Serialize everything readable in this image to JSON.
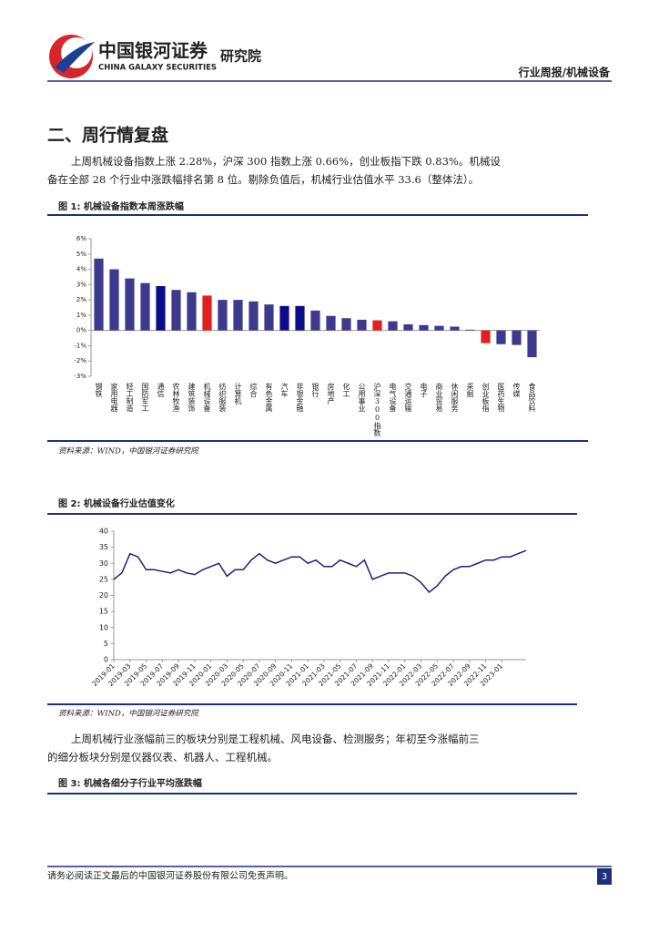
{
  "header": {
    "logo_cn": "中国银河证券",
    "logo_en": "CHINA GALAXY SECURITIES",
    "institute": "研究院",
    "report_type": "行业周报/机械设备"
  },
  "section_title": "二、周行情复盘",
  "paragraph1": [
    "上周机械设备指数上涨 2.28%，沪深 300 指数上涨 0.66%，创业板指下跌 0.83%。机械设",
    "备在全部 28 个行业中涨跌幅排名第 8 位。剔除负值后，机械行业估值水平 33.6（整体法）。"
  ],
  "figure1": {
    "caption": "图 1: 机械设备指数本周涨跌幅",
    "source": "资料来源：WIND，中国银河证券研究院"
  },
  "figure2": {
    "caption": "图 2: 机械设备行业估值变化",
    "source": "资料来源：WIND，中国银河证券研究院"
  },
  "paragraph2": [
    "上周机械行业涨幅前三的板块分别是工程机械、风电设备、检测服务；年初至今涨幅前三",
    "的细分板块分别是仪器仪表、机器人、工程机械。"
  ],
  "figure3": {
    "caption": "图 3: 机械各细分子行业平均涨跌幅"
  },
  "footer": {
    "disclaimer": "请务必阅读正文最后的中国银河证券股份有限公司免责声明。",
    "page": "3"
  },
  "chart_data": [
    {
      "type": "bar",
      "categories": [
        "钢铁",
        "家用电器",
        "轻工制造",
        "国防军工",
        "通信",
        "农林牧渔",
        "建筑装饰",
        "机械设备",
        "纺织服装",
        "计算机",
        "综合",
        "有色金属",
        "汽车",
        "非银金融",
        "银行",
        "房地产",
        "化工",
        "公用事业",
        "沪深300指数",
        "电气设备",
        "交通运输",
        "电子",
        "商业贸易",
        "休闲服务",
        "采掘",
        "创业板指",
        "医药生物",
        "传媒",
        "食品饮料"
      ],
      "values": [
        4.7,
        4.0,
        3.4,
        3.1,
        2.9,
        2.65,
        2.5,
        2.28,
        2.0,
        2.0,
        1.9,
        1.7,
        1.6,
        1.6,
        1.3,
        0.95,
        0.8,
        0.7,
        0.66,
        0.6,
        0.4,
        0.35,
        0.3,
        0.25,
        0.05,
        -0.83,
        -0.9,
        -0.95,
        -1.75
      ],
      "colors": [
        "#3d3a8e",
        "#3d3a8e",
        "#3d3a8e",
        "#3d3a8e",
        "#0c0c8a",
        "#3d3a8e",
        "#3d3a8e",
        "#e0201f",
        "#3d3a8e",
        "#3d3a8e",
        "#3d3a8e",
        "#3d3a8e",
        "#0c0c8a",
        "#0c0c8a",
        "#3d3a8e",
        "#3d3a8e",
        "#3d3a8e",
        "#3d3a8e",
        "#e0201f",
        "#3d3a8e",
        "#3d3a8e",
        "#3d3a8e",
        "#3d3a8e",
        "#3d3a8e",
        "#3d3a8e",
        "#e0201f",
        "#3d3a8e",
        "#3d3a8e",
        "#3d3a8e"
      ],
      "ylim": [
        -3,
        6
      ],
      "yticks": [
        {
          "value": -3,
          "label": "-3%"
        },
        {
          "value": -2,
          "label": "-2%"
        },
        {
          "value": -1,
          "label": "-1%"
        },
        {
          "value": 0,
          "label": "0%"
        },
        {
          "value": 1,
          "label": "1%"
        },
        {
          "value": 2,
          "label": "2%"
        },
        {
          "value": 3,
          "label": "3%"
        },
        {
          "value": 4,
          "label": "4%"
        },
        {
          "value": 5,
          "label": "5%"
        },
        {
          "value": 6,
          "label": "6%"
        }
      ]
    },
    {
      "type": "line",
      "x": [
        "2019-01",
        "2019-02",
        "2019-03",
        "2019-04",
        "2019-05",
        "2019-06",
        "2019-07",
        "2019-08",
        "2019-09",
        "2019-10",
        "2019-11",
        "2019-12",
        "2020-01",
        "2020-02",
        "2020-03",
        "2020-04",
        "2020-05",
        "2020-06",
        "2020-07",
        "2020-08",
        "2020-09",
        "2020-10",
        "2020-11",
        "2020-12",
        "2021-01",
        "2021-02",
        "2021-03",
        "2021-04",
        "2021-05",
        "2021-06",
        "2021-07",
        "2021-08",
        "2021-09",
        "2021-10",
        "2021-11",
        "2021-12",
        "2022-01",
        "2022-02",
        "2022-03",
        "2022-04",
        "2022-05",
        "2022-06",
        "2022-07",
        "2022-08",
        "2022-09",
        "2022-10",
        "2022-11",
        "2022-12",
        "2023-01",
        "2023-02",
        "2023-03",
        "2023-04"
      ],
      "color": "#1f1f78",
      "values": [
        25,
        27,
        33,
        32,
        28,
        28,
        27.5,
        27,
        28,
        27,
        26.5,
        28,
        29,
        30,
        26,
        28,
        28,
        31,
        33,
        31,
        30,
        31,
        32,
        32,
        30,
        31,
        29,
        29,
        31,
        30,
        29,
        31,
        25,
        26,
        27,
        27,
        27,
        26,
        24,
        21,
        23,
        26,
        28,
        29,
        29,
        30,
        31,
        31,
        32,
        32,
        33,
        34
      ],
      "xticks": [
        "2019-01",
        "2019-03",
        "2019-05",
        "2019-07",
        "2019-09",
        "2019-11",
        "2020-01",
        "2020-03",
        "2020-05",
        "2020-07",
        "2020-09",
        "2020-11",
        "2021-01",
        "2021-03",
        "2021-05",
        "2021-07",
        "2021-09",
        "2021-11",
        "2022-01",
        "2022-03",
        "2022-05",
        "2022-07",
        "2022-09",
        "2022-11",
        "2023-01"
      ],
      "ylim": [
        0,
        40
      ],
      "yticks": [
        0,
        5,
        10,
        15,
        20,
        25,
        30,
        35,
        40
      ]
    }
  ]
}
